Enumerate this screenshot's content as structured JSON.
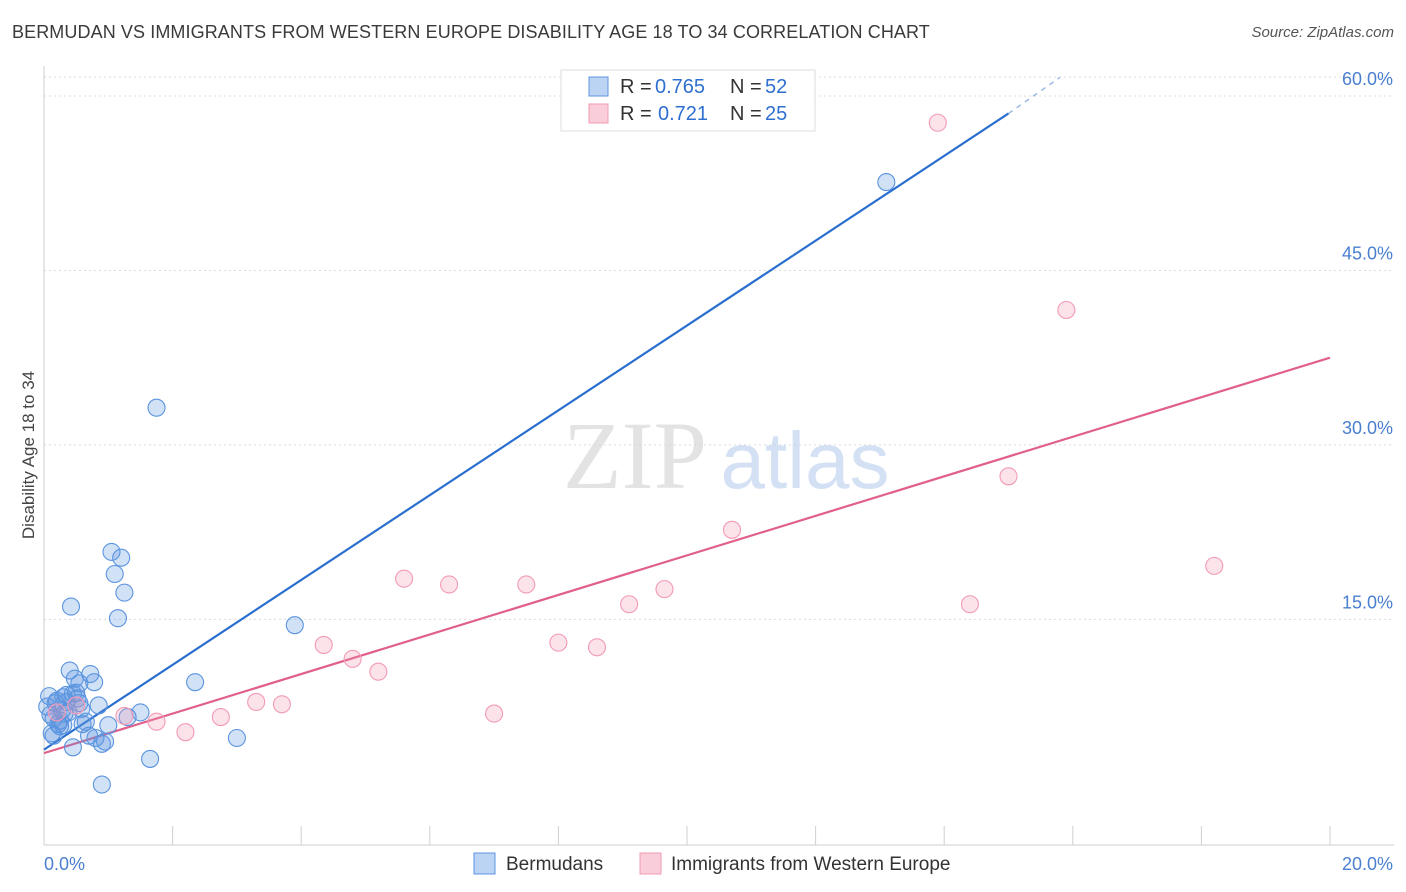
{
  "title": "BERMUDAN VS IMMIGRANTS FROM WESTERN EUROPE DISABILITY AGE 18 TO 34 CORRELATION CHART",
  "source": "Source: ZipAtlas.com",
  "watermark": {
    "zip": "ZIP",
    "atlas": "atlas"
  },
  "colors": {
    "blue": "#5b95e0",
    "blue_line": "#2a6fcf",
    "pink": "#f39ab5",
    "pink_line": "#e0608a",
    "grid": "#d9d9d9",
    "axis_text": "#4a7fcf"
  },
  "chart_data": {
    "type": "scatter",
    "title": "BERMUDAN VS IMMIGRANTS FROM WESTERN EUROPE DISABILITY AGE 18 TO 34 CORRELATION CHART",
    "xlabel": "",
    "ylabel": "Disability Age 18 to 34",
    "xlim": [
      0,
      20
    ],
    "ylim": [
      0,
      60
    ],
    "x_tick_labels": [
      "0.0%",
      "20.0%"
    ],
    "y_ticks": [
      {
        "value": 15,
        "label": "15.0%"
      },
      {
        "value": 30,
        "label": "30.0%"
      },
      {
        "value": 45,
        "label": "45.0%"
      },
      {
        "value": 60,
        "label": "60.0%"
      }
    ],
    "legend": {
      "position": "top-center",
      "entries": [
        {
          "r_label": "R =",
          "r_value": "0.765",
          "n_label": "N =",
          "n_value": "52"
        },
        {
          "r_label": "R =",
          "r_value": "0.721",
          "n_label": "N =",
          "n_value": "25"
        }
      ]
    },
    "bottom_legend": [
      "Bermudans",
      "Immigrants from Western Europe"
    ],
    "series": [
      {
        "name": "Bermudans",
        "color": "#5b95e0",
        "trend": {
          "x0": 0,
          "y0": 3.8,
          "x1": 15.0,
          "y1": 58.5,
          "dash_x1": 15.8,
          "dash_y1": 61.6
        },
        "points": [
          [
            0.05,
            7.5
          ],
          [
            0.08,
            8.4
          ],
          [
            0.1,
            6.8
          ],
          [
            0.12,
            5.2
          ],
          [
            0.15,
            6.5
          ],
          [
            0.18,
            7.8
          ],
          [
            0.2,
            8.0
          ],
          [
            0.22,
            6.0
          ],
          [
            0.25,
            5.8
          ],
          [
            0.28,
            7.2
          ],
          [
            0.3,
            8.3
          ],
          [
            0.32,
            6.9
          ],
          [
            0.35,
            8.5
          ],
          [
            0.38,
            7.0
          ],
          [
            0.4,
            10.6
          ],
          [
            0.42,
            16.1
          ],
          [
            0.45,
            4.0
          ],
          [
            0.48,
            9.9
          ],
          [
            0.5,
            8.7
          ],
          [
            0.52,
            8.2
          ],
          [
            0.55,
            9.5
          ],
          [
            0.58,
            7.3
          ],
          [
            0.6,
            6.0
          ],
          [
            0.65,
            6.2
          ],
          [
            0.7,
            5.0
          ],
          [
            0.72,
            10.3
          ],
          [
            0.78,
            9.6
          ],
          [
            0.8,
            4.8
          ],
          [
            0.85,
            7.6
          ],
          [
            0.9,
            4.3
          ],
          [
            0.95,
            4.5
          ],
          [
            1.0,
            5.9
          ],
          [
            1.05,
            20.8
          ],
          [
            1.1,
            18.9
          ],
          [
            1.15,
            15.1
          ],
          [
            1.2,
            20.3
          ],
          [
            1.25,
            17.3
          ],
          [
            1.3,
            6.6
          ],
          [
            1.5,
            7.0
          ],
          [
            1.65,
            3.0
          ],
          [
            1.75,
            33.2
          ],
          [
            2.35,
            9.6
          ],
          [
            3.0,
            4.8
          ],
          [
            3.9,
            14.5
          ],
          [
            0.9,
            0.8
          ],
          [
            0.15,
            5.0
          ],
          [
            0.25,
            6.3
          ],
          [
            0.35,
            7.9
          ],
          [
            0.45,
            8.6
          ],
          [
            0.55,
            7.8
          ],
          [
            13.1,
            52.6
          ],
          [
            0.3,
            5.9
          ]
        ]
      },
      {
        "name": "Immigrants from Western Europe",
        "color": "#f39ab5",
        "trend": {
          "x0": 0,
          "y0": 3.5,
          "x1": 20.0,
          "y1": 37.5
        },
        "points": [
          [
            0.2,
            7.0
          ],
          [
            0.5,
            7.6
          ],
          [
            1.25,
            6.7
          ],
          [
            1.75,
            6.2
          ],
          [
            2.2,
            5.3
          ],
          [
            2.75,
            6.6
          ],
          [
            3.3,
            7.9
          ],
          [
            3.7,
            7.7
          ],
          [
            4.35,
            12.8
          ],
          [
            4.8,
            11.6
          ],
          [
            5.2,
            10.5
          ],
          [
            5.6,
            18.5
          ],
          [
            6.3,
            18.0
          ],
          [
            7.0,
            6.9
          ],
          [
            7.5,
            18.0
          ],
          [
            8.0,
            13.0
          ],
          [
            8.6,
            12.6
          ],
          [
            9.1,
            16.3
          ],
          [
            9.65,
            17.6
          ],
          [
            10.7,
            22.7
          ],
          [
            13.9,
            57.7
          ],
          [
            14.4,
            16.3
          ],
          [
            15.0,
            27.3
          ],
          [
            15.9,
            41.6
          ],
          [
            18.2,
            19.6
          ]
        ]
      }
    ]
  }
}
